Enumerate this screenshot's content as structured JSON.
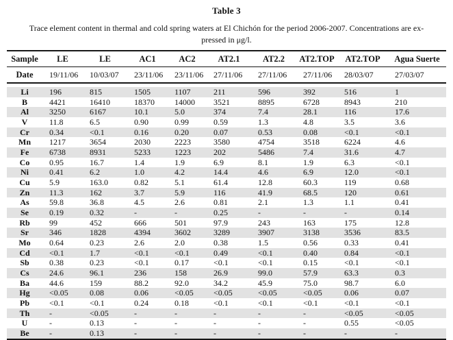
{
  "title": "Table 3",
  "caption_line1": "Trace element content in thermal and cold spring waters at El Chichón for the period 2006-2007. Concentrations are ex-",
  "caption_line2": "pressed in μg/l.",
  "colors": {
    "row_shade": "#e2e2e2",
    "rule": "#161616"
  },
  "table": {
    "sample_label": "Sample",
    "date_label": "Date",
    "columns": [
      "LE",
      "LE",
      "AC1",
      "AC2",
      "AT2.1",
      "AT2.2",
      "AT2.TOP",
      "AT2.TOP",
      "Agua Suerte"
    ],
    "dates": [
      "19/11/06",
      "10/03/07",
      "23/11/06",
      "23/11/06",
      "27/11/06",
      "27/11/06",
      "27/11/06",
      "28/03/07",
      "27/03/07"
    ],
    "rows": [
      {
        "element": "Li",
        "values": [
          "196",
          "815",
          "1505",
          "1107",
          "211",
          "596",
          "392",
          "516",
          "1"
        ]
      },
      {
        "element": "B",
        "values": [
          "4421",
          "16410",
          "18370",
          "14000",
          "3521",
          "8895",
          "6728",
          "8943",
          "210"
        ]
      },
      {
        "element": "Al",
        "values": [
          "3250",
          "6167",
          "10.1",
          "5.0",
          "374",
          "7.4",
          "28.1",
          "116",
          "17.6"
        ]
      },
      {
        "element": "V",
        "values": [
          "11.8",
          "6.5",
          "0.90",
          "0.99",
          "0.59",
          "1.3",
          "4.8",
          "3.5",
          "3.6"
        ]
      },
      {
        "element": "Cr",
        "values": [
          "0.34",
          "<0.1",
          "0.16",
          "0.20",
          "0.07",
          "0.53",
          "0.08",
          "<0.1",
          "<0.1"
        ]
      },
      {
        "element": "Mn",
        "values": [
          "1217",
          "3654",
          "2030",
          "2223",
          "3580",
          "4754",
          "3518",
          "6224",
          "4.6"
        ]
      },
      {
        "element": "Fe",
        "values": [
          "6738",
          "8931",
          "5233",
          "1223",
          "202",
          "5486",
          "7.4",
          "31.6",
          "4.7"
        ]
      },
      {
        "element": "Co",
        "values": [
          "0.95",
          "16.7",
          "1.4",
          "1.9",
          "6.9",
          "8.1",
          "1.9",
          "6.3",
          "<0.1"
        ]
      },
      {
        "element": "Ni",
        "values": [
          "0.41",
          "6.2",
          "1.0",
          "4.2",
          "14.4",
          "4.6",
          "6.9",
          "12.0",
          "<0.1"
        ]
      },
      {
        "element": "Cu",
        "values": [
          "5.9",
          "163.0",
          "0.82",
          "5.1",
          "61.4",
          "12.8",
          "60.3",
          "119",
          "0.68"
        ]
      },
      {
        "element": "Zn",
        "values": [
          "11.3",
          "162",
          "3.7",
          "5.9",
          "116",
          "41.9",
          "68.5",
          "120",
          "0.61"
        ]
      },
      {
        "element": "As",
        "values": [
          "59.8",
          "36.8",
          "4.5",
          "2.6",
          "0.81",
          "2.1",
          "1.3",
          "1.1",
          "0.41"
        ]
      },
      {
        "element": "Se",
        "values": [
          "0.19",
          "0.32",
          "-",
          "-",
          "0.25",
          "-",
          "-",
          "-",
          "0.14"
        ]
      },
      {
        "element": "Rb",
        "values": [
          "99",
          "452",
          "666",
          "501",
          "97.9",
          "243",
          "163",
          "175",
          "12.8"
        ]
      },
      {
        "element": "Sr",
        "values": [
          "346",
          "1828",
          "4394",
          "3602",
          "3289",
          "3907",
          "3138",
          "3536",
          "83.5"
        ]
      },
      {
        "element": "Mo",
        "values": [
          "0.64",
          "0.23",
          "2.6",
          "2.0",
          "0.38",
          "1.5",
          "0.56",
          "0.33",
          "0.41"
        ]
      },
      {
        "element": "Cd",
        "values": [
          "<0.1",
          "1.7",
          "<0.1",
          "<0.1",
          "0.49",
          "<0.1",
          "0.40",
          "0.84",
          "<0.1"
        ]
      },
      {
        "element": "Sb",
        "values": [
          "0.38",
          "0.23",
          "<0.1",
          "0.17",
          "<0.1",
          "<0.1",
          "0.15",
          "<0.1",
          "<0.1"
        ]
      },
      {
        "element": "Cs",
        "values": [
          "24.6",
          "96.1",
          "236",
          "158",
          "26.9",
          "99.0",
          "57.9",
          "63.3",
          "0.3"
        ]
      },
      {
        "element": "Ba",
        "values": [
          "44.6",
          "159",
          "88.2",
          "92.0",
          "34.2",
          "45.9",
          "75.0",
          "98.7",
          "6.0"
        ]
      },
      {
        "element": "Hg",
        "values": [
          "<0.05",
          "0.08",
          "0.06",
          "<0.05",
          "<0.05",
          "<0.05",
          "<0.05",
          "0.06",
          "0.07"
        ]
      },
      {
        "element": "Pb",
        "values": [
          "<0.1",
          "<0.1",
          "0.24",
          "0.18",
          "<0.1",
          "<0.1",
          "<0.1",
          "<0.1",
          "<0.1"
        ]
      },
      {
        "element": "Th",
        "values": [
          "-",
          "<0.05",
          "-",
          "-",
          "-",
          "-",
          "-",
          "<0.05",
          "<0.05"
        ]
      },
      {
        "element": "U",
        "values": [
          "-",
          "0.13",
          "-",
          "-",
          "-",
          "-",
          "-",
          "0.55",
          "<0.05"
        ]
      },
      {
        "element": "Be",
        "values": [
          "-",
          "0.13",
          "-",
          "-",
          "-",
          "-",
          "-",
          "-",
          "-"
        ]
      }
    ]
  }
}
